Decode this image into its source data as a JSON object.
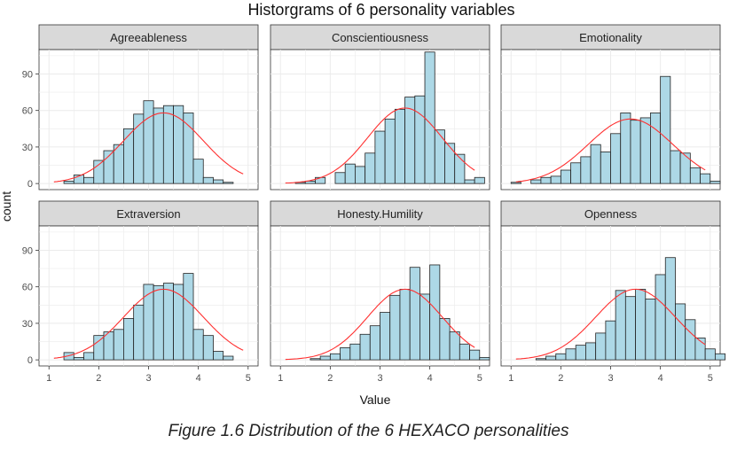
{
  "title": "Historgrams of 6 personality variables",
  "caption": "Figure 1.6 Distribution of the 6 HEXACO personalities",
  "colors": {
    "bar_fill": "#add8e6",
    "bar_stroke": "#222222",
    "curve": "#ff3030",
    "strip": "#d9d9d9",
    "grid": "#ebebeb"
  },
  "chart_data": {
    "type": "bar",
    "title": "Historgrams of 6 personality variables",
    "xlabel": "Value",
    "ylabel": "count",
    "xlim": [
      1,
      5
    ],
    "ylim": [
      0,
      110
    ],
    "xticks": [
      1,
      2,
      3,
      4,
      5
    ],
    "yticks": [
      0,
      30,
      60,
      90
    ],
    "grid": true,
    "legend": "none",
    "bins": {
      "start": 1.1,
      "width": 0.2,
      "panels": [
        {
          "name": "Agreeableness",
          "values": [
            0,
            2,
            7,
            5,
            19,
            27,
            32,
            45,
            57,
            68,
            62,
            64,
            64,
            58,
            20,
            5,
            3,
            1,
            0,
            0
          ],
          "curve": {
            "mean": 3.3,
            "sd": 0.8,
            "peak": 58
          }
        },
        {
          "name": "Conscientiousness",
          "values": [
            0,
            1,
            2,
            5,
            0,
            9,
            16,
            14,
            25,
            43,
            53,
            61,
            71,
            72,
            108,
            44,
            33,
            24,
            3,
            5
          ],
          "curve": {
            "mean": 3.5,
            "sd": 0.75,
            "peak": 62
          }
        },
        {
          "name": "Emotionality",
          "values": [
            1,
            0,
            3,
            5,
            6,
            11,
            17,
            22,
            32,
            26,
            41,
            58,
            52,
            54,
            58,
            88,
            27,
            25,
            13,
            8,
            2
          ],
          "start": 1.0,
          "curve": {
            "mean": 3.4,
            "sd": 0.85,
            "peak": 53
          }
        },
        {
          "name": "Extraversion",
          "values": [
            0,
            6,
            2,
            6,
            20,
            23,
            25,
            34,
            45,
            62,
            61,
            63,
            62,
            71,
            25,
            20,
            7,
            3,
            0,
            0
          ],
          "curve": {
            "mean": 3.3,
            "sd": 0.8,
            "peak": 58
          }
        },
        {
          "name": "Honesty.Humility",
          "values": [
            0,
            0,
            0,
            1,
            3,
            5,
            10,
            13,
            21,
            28,
            39,
            53,
            58,
            76,
            54,
            78,
            34,
            23,
            13,
            8,
            2
          ],
          "start": 1.0,
          "curve": {
            "mean": 3.5,
            "sd": 0.75,
            "peak": 58
          }
        },
        {
          "name": "Openness",
          "values": [
            0,
            0,
            0,
            1,
            3,
            5,
            9,
            12,
            14,
            22,
            32,
            57,
            52,
            58,
            50,
            70,
            84,
            46,
            33,
            18,
            9,
            5
          ],
          "start": 0.9,
          "curve": {
            "mean": 3.5,
            "sd": 0.8,
            "peak": 58
          }
        }
      ]
    }
  }
}
